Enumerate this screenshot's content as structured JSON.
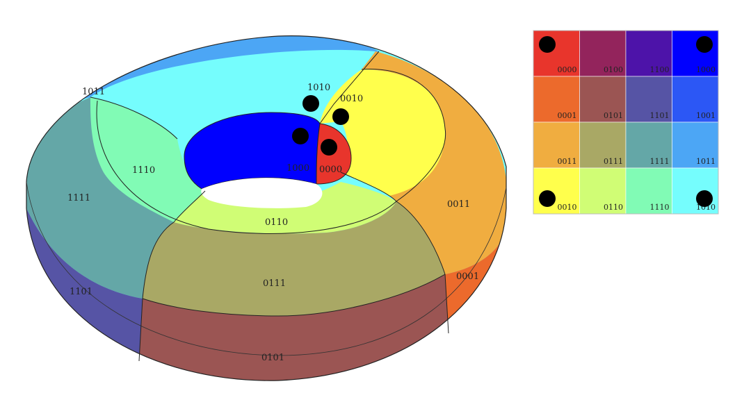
{
  "torus": {
    "labels": {
      "r1011": "1011",
      "r1010": "1010",
      "r0010": "0010",
      "r1110": "1110",
      "r1111": "1111",
      "r1000": "1000",
      "r0000": "0000",
      "r0110": "0110",
      "r0011": "0011",
      "r0111": "0111",
      "r1101": "1101",
      "r0001": "0001",
      "r0101": "0101"
    },
    "colors": {
      "r0000": "#e8352c",
      "r0001": "#ec6a2c",
      "r0011": "#f0ad40",
      "r0010": "#ffff4c",
      "r0101": "#9b5553",
      "r0111": "#a9a865",
      "r0110": "#d0fd75",
      "r1101": "#5654a5",
      "r1111": "#64a7a7",
      "r1110": "#81fbb5",
      "r1000": "#0000ff",
      "r1001": "#2c57f5",
      "r1011": "#4ca6f5",
      "r1010": "#75fdfd",
      "hole": "#ffffff"
    }
  },
  "grid": {
    "rows": [
      {
        "cells": [
          {
            "label": "0000",
            "color": "#e8352c"
          },
          {
            "label": "0100",
            "color": "#93245c"
          },
          {
            "label": "1100",
            "color": "#4d13a9"
          },
          {
            "label": "1000",
            "color": "#0000ff"
          }
        ]
      },
      {
        "cells": [
          {
            "label": "0001",
            "color": "#ec6a2c"
          },
          {
            "label": "0101",
            "color": "#9b5553"
          },
          {
            "label": "1101",
            "color": "#5654a5"
          },
          {
            "label": "1001",
            "color": "#2c57f5"
          }
        ]
      },
      {
        "cells": [
          {
            "label": "0011",
            "color": "#f0ad40"
          },
          {
            "label": "0111",
            "color": "#a9a865"
          },
          {
            "label": "1111",
            "color": "#64a7a7"
          },
          {
            "label": "1011",
            "color": "#4ca6f5"
          }
        ]
      },
      {
        "cells": [
          {
            "label": "0010",
            "color": "#ffff4c"
          },
          {
            "label": "0110",
            "color": "#d0fd75"
          },
          {
            "label": "1110",
            "color": "#81fbb5"
          },
          {
            "label": "1010",
            "color": "#75fdfd"
          }
        ]
      }
    ],
    "dots": [
      "0000",
      "1000",
      "0010",
      "1010"
    ]
  }
}
